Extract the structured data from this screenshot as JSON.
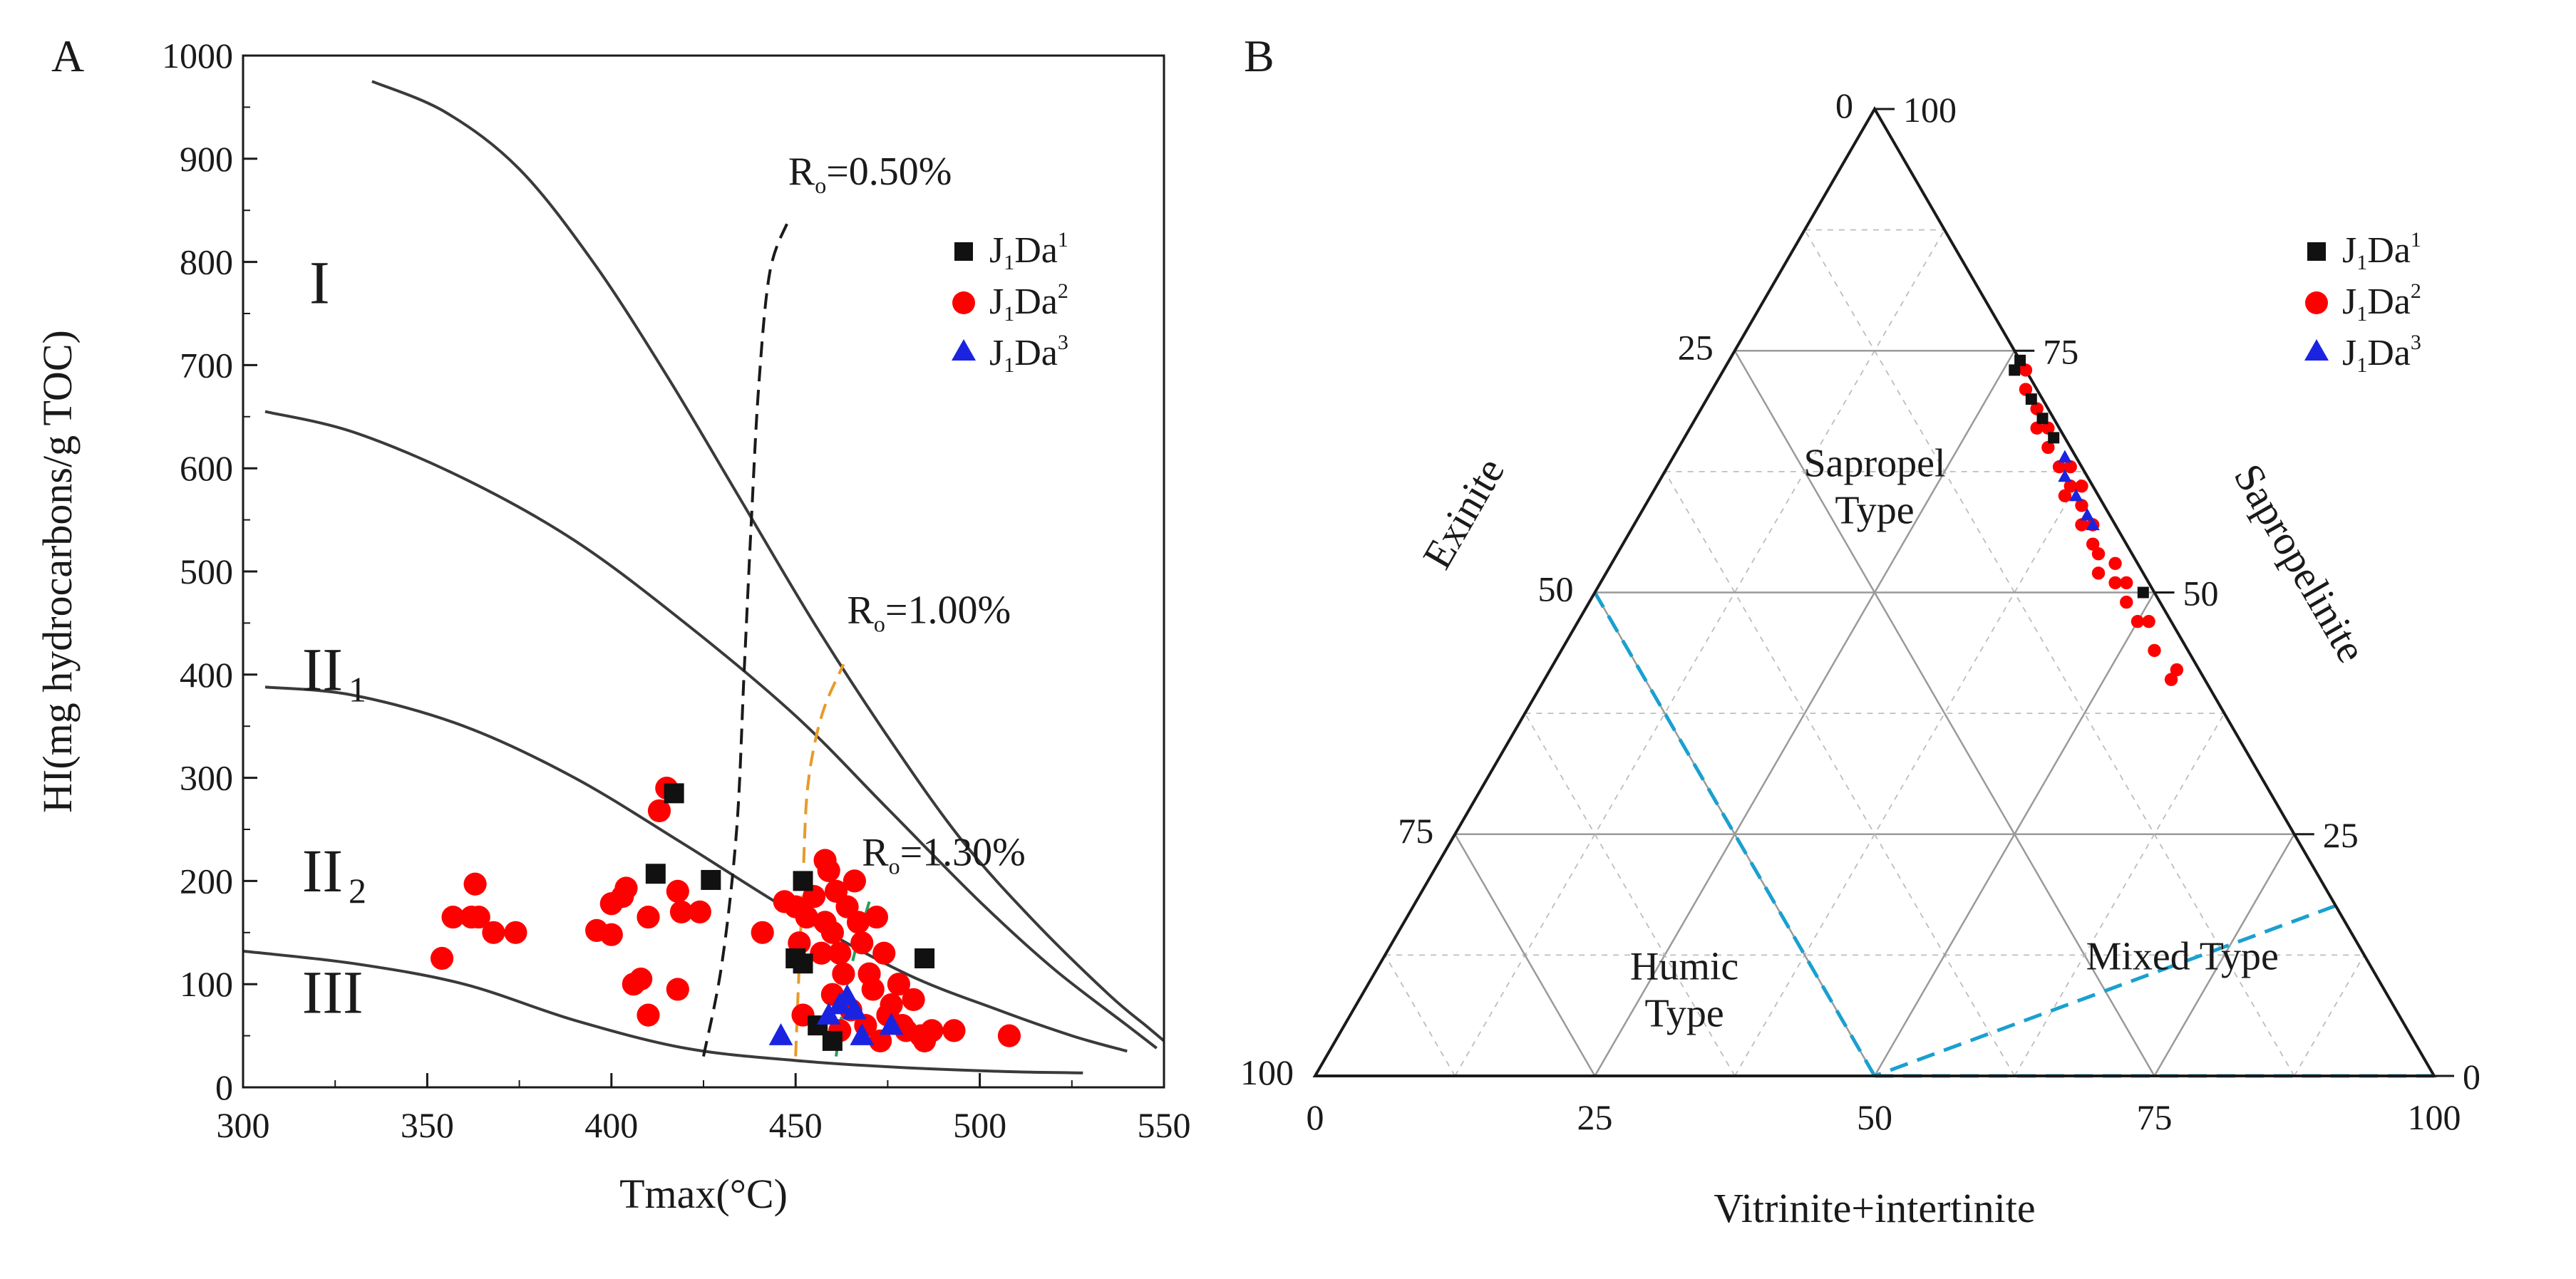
{
  "colors": {
    "axis": "#1a1a1a",
    "curve": "#3a3a3a",
    "ro050": "#1a1a1a",
    "ro100": "#e89a2a",
    "ro130": "#23a05a",
    "grid": "#9a9a9a",
    "boundary": "#1aa0d0",
    "s1": "#111111",
    "s2": "#ff0000",
    "s3": "#1a24e0"
  },
  "legend": [
    {
      "base": "J",
      "sub": "1",
      "mid": "Da",
      "sup": "1",
      "marker": "square",
      "color": "#111111"
    },
    {
      "base": "J",
      "sub": "1",
      "mid": "Da",
      "sup": "2",
      "marker": "circle",
      "color": "#ff0000"
    },
    {
      "base": "J",
      "sub": "1",
      "mid": "Da",
      "sup": "3",
      "marker": "triangle",
      "color": "#1a24e0"
    }
  ],
  "chart_data": [
    {
      "panel": "A",
      "type": "scatter",
      "xlabel": "Tmax(°C)",
      "ylabel": "HI(mg hydrocarbons/g TOC)",
      "xlim": [
        300,
        550
      ],
      "ylim": [
        0,
        1000
      ],
      "xticks": [
        "300",
        "350",
        "400",
        "450",
        "500",
        "550"
      ],
      "yticks": [
        "0",
        "100",
        "200",
        "300",
        "400",
        "500",
        "600",
        "700",
        "800",
        "900",
        "1000"
      ],
      "zones": [
        {
          "roman": "I",
          "sub": "",
          "x": 318,
          "y": 760
        },
        {
          "roman": "II",
          "sub": "1",
          "x": 316,
          "y": 385
        },
        {
          "roman": "II",
          "sub": "2",
          "x": 316,
          "y": 190
        },
        {
          "roman": "III",
          "sub": "",
          "x": 316,
          "y": 72
        }
      ],
      "boundaries": [
        [
          [
            335,
            975
          ],
          [
            355,
            945
          ],
          [
            375,
            890
          ],
          [
            395,
            800
          ],
          [
            415,
            690
          ],
          [
            435,
            570
          ],
          [
            455,
            450
          ],
          [
            475,
            340
          ],
          [
            495,
            240
          ],
          [
            515,
            160
          ],
          [
            535,
            90
          ],
          [
            545,
            60
          ],
          [
            550,
            45
          ]
        ],
        [
          [
            306,
            655
          ],
          [
            330,
            635
          ],
          [
            360,
            590
          ],
          [
            390,
            530
          ],
          [
            420,
            450
          ],
          [
            450,
            360
          ],
          [
            475,
            270
          ],
          [
            500,
            180
          ],
          [
            520,
            115
          ],
          [
            540,
            60
          ],
          [
            548,
            38
          ]
        ],
        [
          [
            306,
            388
          ],
          [
            330,
            380
          ],
          [
            360,
            350
          ],
          [
            390,
            300
          ],
          [
            420,
            235
          ],
          [
            450,
            168
          ],
          [
            480,
            110
          ],
          [
            505,
            75
          ],
          [
            525,
            50
          ],
          [
            540,
            35
          ]
        ],
        [
          [
            300,
            132
          ],
          [
            330,
            120
          ],
          [
            360,
            100
          ],
          [
            390,
            65
          ],
          [
            420,
            38
          ],
          [
            450,
            26
          ],
          [
            480,
            19
          ],
          [
            510,
            15
          ],
          [
            528,
            14
          ]
        ]
      ],
      "iso_ro": [
        {
          "label": "R",
          "sub": "o",
          "value": "=0.50%",
          "label_x": 448,
          "label_y": 875,
          "pts": [
            [
              425,
              30
            ],
            [
              430,
              120
            ],
            [
              434,
              250
            ],
            [
              436,
              400
            ],
            [
              438,
              550
            ],
            [
              440,
              680
            ],
            [
              443,
              790
            ],
            [
              448,
              840
            ]
          ]
        },
        {
          "label": "R",
          "sub": "o",
          "value": "=1.00%",
          "label_x": 464,
          "label_y": 450,
          "pts": [
            [
              450,
              30
            ],
            [
              451,
              120
            ],
            [
              452,
              200
            ],
            [
              453,
              280
            ],
            [
              455,
              330
            ],
            [
              458,
              370
            ],
            [
              463,
              410
            ]
          ]
        },
        {
          "label": "R",
          "sub": "o",
          "value": "=1.30%",
          "label_x": 468,
          "label_y": 215,
          "pts": [
            [
              461,
              30
            ],
            [
              463,
              80
            ],
            [
              466,
              130
            ],
            [
              470,
              180
            ]
          ]
        }
      ],
      "series": [
        {
          "name": "J1Da1",
          "marker": "square",
          "points": [
            [
              412,
              207
            ],
            [
              417,
              285
            ],
            [
              427,
              201
            ],
            [
              450,
              125
            ],
            [
              452,
              120
            ],
            [
              452,
              200
            ],
            [
              456,
              60
            ],
            [
              460,
              45
            ],
            [
              485,
              125
            ]
          ]
        },
        {
          "name": "J1Da2",
          "marker": "circle",
          "points": [
            [
              354,
              125
            ],
            [
              357,
              165
            ],
            [
              362,
              165
            ],
            [
              363,
              197
            ],
            [
              364,
              165
            ],
            [
              368,
              150
            ],
            [
              374,
              150
            ],
            [
              396,
              152
            ],
            [
              400,
              178
            ],
            [
              400,
              148
            ],
            [
              403,
              185
            ],
            [
              404,
              193
            ],
            [
              406,
              100
            ],
            [
              408,
              105
            ],
            [
              410,
              70
            ],
            [
              410,
              165
            ],
            [
              413,
              268
            ],
            [
              415,
              290
            ],
            [
              418,
              190
            ],
            [
              419,
              170
            ],
            [
              424,
              170
            ],
            [
              418,
              95
            ],
            [
              441,
              150
            ],
            [
              447,
              180
            ],
            [
              450,
              175
            ],
            [
              451,
              140
            ],
            [
              452,
              70
            ],
            [
              453,
              165
            ],
            [
              455,
              185
            ],
            [
              457,
              130
            ],
            [
              458,
              220
            ],
            [
              458,
              160
            ],
            [
              460,
              150
            ],
            [
              460,
              90
            ],
            [
              461,
              190
            ],
            [
              462,
              130
            ],
            [
              463,
              110
            ],
            [
              464,
              175
            ],
            [
              465,
              75
            ],
            [
              466,
              200
            ],
            [
              467,
              160
            ],
            [
              468,
              140
            ],
            [
              469,
              60
            ],
            [
              470,
              110
            ],
            [
              471,
              95
            ],
            [
              472,
              165
            ],
            [
              473,
              45
            ],
            [
              474,
              130
            ],
            [
              475,
              70
            ],
            [
              476,
              80
            ],
            [
              478,
              100
            ],
            [
              479,
              60
            ],
            [
              480,
              55
            ],
            [
              482,
              85
            ],
            [
              484,
              50
            ],
            [
              485,
              45
            ],
            [
              487,
              55
            ],
            [
              493,
              55
            ],
            [
              508,
              50
            ],
            [
              462,
              55
            ],
            [
              459,
              210
            ]
          ]
        },
        {
          "name": "J1Da3",
          "marker": "triangle",
          "points": [
            [
              446,
              50
            ],
            [
              459,
              70
            ],
            [
              462,
              80
            ],
            [
              464,
              88
            ],
            [
              466,
              75
            ],
            [
              468,
              50
            ],
            [
              476,
              60
            ]
          ]
        }
      ],
      "panel_label": "A"
    },
    {
      "panel": "B",
      "type": "scatter",
      "subtype": "ternary",
      "axes": {
        "bottom": "Vitrinite+intertinite",
        "left": "Exinite",
        "right": "Sapropelinite"
      },
      "bottom_ticks": [
        "0",
        "25",
        "50",
        "75",
        "100"
      ],
      "left_ticks": [
        "0",
        "25",
        "50",
        "75",
        "100"
      ],
      "right_ticks": [
        "0",
        "25",
        "50",
        "75",
        "100"
      ],
      "zones": [
        {
          "name": "Sapropel",
          "name2": "Type",
          "s": 62,
          "v": 19
        },
        {
          "name": "Humic",
          "name2": "Type",
          "s": 10,
          "v": 28
        },
        {
          "name": "Mixed Type",
          "name2": "",
          "s": 11,
          "v": 72
        }
      ],
      "boundary_lines": [
        [
          [
            0,
            82.4,
            17.6
          ],
          [
            50,
            50,
            0
          ]
        ],
        [
          [
            50,
            50,
            0
          ],
          [
            0,
            100,
            0
          ]
        ],
        [
          [
            50,
            50,
            0
          ],
          [
            50,
            0,
            50
          ]
        ]
      ],
      "series": [
        {
          "name": "J1Da1",
          "marker": "square",
          "points": [
            [
              0,
              26,
              74
            ],
            [
              1,
              26,
              73
            ],
            [
              1,
              29,
              70
            ],
            [
              1,
              31,
              68
            ],
            [
              1,
              33,
              66
            ],
            [
              1,
              49,
              50
            ]
          ]
        },
        {
          "name": "J1Da2",
          "marker": "circle",
          "points": [
            [
              0,
              27,
              73
            ],
            [
              1,
              28,
              71
            ],
            [
              1,
              30,
              69
            ],
            [
              2,
              31,
              67
            ],
            [
              1,
              32,
              67
            ],
            [
              2,
              33,
              65
            ],
            [
              2,
              35,
              63
            ],
            [
              2,
              37,
              61
            ],
            [
              3,
              37,
              60
            ],
            [
              2,
              39,
              59
            ],
            [
              3,
              40,
              57
            ],
            [
              2,
              41,
              57
            ],
            [
              3,
              42,
              55
            ],
            [
              3,
              43,
              54
            ],
            [
              2,
              45,
              53
            ],
            [
              3,
              46,
              51
            ],
            [
              2,
              47,
              51
            ],
            [
              3,
              48,
              49
            ],
            [
              3,
              50,
              47
            ],
            [
              2,
              51,
              47
            ],
            [
              3,
              53,
              44
            ],
            [
              2,
              56,
              42
            ],
            [
              3,
              56,
              41
            ],
            [
              1,
              38,
              61
            ],
            [
              4,
              44,
              52
            ],
            [
              1,
              36,
              63
            ]
          ]
        },
        {
          "name": "J1Da3",
          "marker": "triangle",
          "points": [
            [
              1,
              35,
              64
            ],
            [
              2,
              36,
              62
            ],
            [
              2,
              38,
              60
            ],
            [
              2,
              40,
              58
            ],
            [
              2,
              41,
              57
            ]
          ]
        }
      ],
      "panel_label": "B"
    }
  ]
}
